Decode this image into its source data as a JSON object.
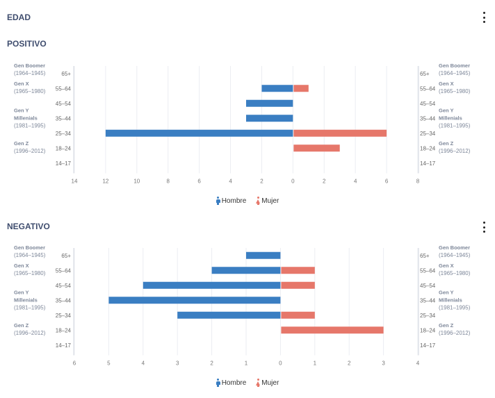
{
  "header": {
    "title": "EDAD"
  },
  "sections": [
    {
      "title": "POSITIVO"
    },
    {
      "title": "NEGATIVO"
    }
  ],
  "legend": {
    "male": "Hombre",
    "female": "Mujer"
  },
  "colors": {
    "male": "#3a7ec2",
    "female": "#e6776a"
  },
  "chart_data": [
    {
      "type": "bar",
      "orientation": "horizontal-diverging",
      "categories": [
        "65+",
        "55–64",
        "45–54",
        "35–44",
        "25–34",
        "18–24",
        "14–17"
      ],
      "generations": [
        {
          "name": "Gen Boomer",
          "years": "(1964–1945)"
        },
        {
          "name": "Gen X",
          "years": "(1965–1980)"
        },
        {
          "name": "Gen Y Millenials",
          "years": "(1981–1995)"
        },
        {
          "name": "Gen Z",
          "years": "(1996–2012)"
        }
      ],
      "series": [
        {
          "name": "Hombre",
          "values": [
            0,
            2,
            3,
            3,
            12,
            0,
            0
          ]
        },
        {
          "name": "Mujer",
          "values": [
            0,
            1,
            0,
            0,
            6,
            3,
            0
          ]
        }
      ],
      "xticks": [
        "14",
        "12",
        "10",
        "8",
        "6",
        "4",
        "2",
        "0",
        "2",
        "4",
        "6",
        "8"
      ],
      "xlim": [
        -14,
        8
      ],
      "grid": true,
      "legend_position": "bottom-center"
    },
    {
      "type": "bar",
      "orientation": "horizontal-diverging",
      "categories": [
        "65+",
        "55–64",
        "45–54",
        "35–44",
        "25–34",
        "18–24",
        "14–17"
      ],
      "generations": [
        {
          "name": "Gen Boomer",
          "years": "(1964–1945)"
        },
        {
          "name": "Gen X",
          "years": "(1965–1980)"
        },
        {
          "name": "Gen Y Millenials",
          "years": "(1981–1995)"
        },
        {
          "name": "Gen Z",
          "years": "(1996–2012)"
        }
      ],
      "series": [
        {
          "name": "Hombre",
          "values": [
            1,
            2,
            4,
            5,
            3,
            0,
            0
          ]
        },
        {
          "name": "Mujer",
          "values": [
            0,
            1,
            1,
            0,
            1,
            3,
            0
          ]
        }
      ],
      "xticks": [
        "6",
        "5",
        "4",
        "3",
        "2",
        "1",
        "0",
        "1",
        "2",
        "3",
        "4"
      ],
      "xlim": [
        -6,
        4
      ],
      "grid": true,
      "legend_position": "bottom-center"
    }
  ]
}
